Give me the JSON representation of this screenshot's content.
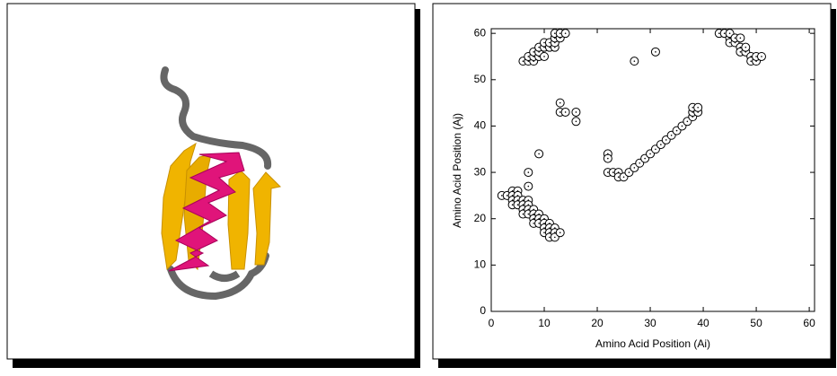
{
  "chart_data": {
    "type": "scatter",
    "xlabel": "Amino Acid Position (Ai)",
    "ylabel": "Amino Acid Position (Aj)",
    "xlim": [
      0,
      61
    ],
    "ylim": [
      0,
      61
    ],
    "xticks": [
      0,
      10,
      20,
      30,
      40,
      50,
      60
    ],
    "yticks": [
      0,
      10,
      20,
      30,
      40,
      50,
      60
    ],
    "color": "#000000",
    "x": [
      6,
      7,
      8,
      7,
      8,
      8,
      9,
      9,
      9,
      10,
      10,
      10,
      11,
      11,
      12,
      12,
      12,
      12,
      13,
      13,
      14,
      27,
      31,
      43,
      44,
      45,
      45,
      45,
      46,
      46,
      47,
      47,
      48,
      48,
      49,
      49,
      50,
      50,
      51,
      47,
      13,
      13,
      14,
      16,
      16,
      9,
      7,
      7,
      22,
      22,
      22,
      23,
      24,
      24,
      25,
      26,
      27,
      28,
      29,
      30,
      31,
      32,
      33,
      34,
      35,
      36,
      37,
      38,
      38,
      38,
      39,
      39,
      2,
      3,
      4,
      4,
      4,
      4,
      5,
      5,
      5,
      5,
      6,
      6,
      6,
      6,
      7,
      7,
      7,
      7,
      8,
      8,
      8,
      8,
      9,
      9,
      9,
      10,
      10,
      10,
      10,
      11,
      11,
      11,
      11,
      12,
      12,
      12,
      13
    ],
    "values": [
      54,
      54,
      54,
      55,
      55,
      56,
      55,
      56,
      57,
      55,
      57,
      58,
      57,
      58,
      57,
      58,
      59,
      60,
      59,
      60,
      60,
      54,
      56,
      60,
      60,
      59,
      60,
      58,
      58,
      59,
      57,
      56,
      56,
      57,
      55,
      54,
      54,
      55,
      55,
      59,
      45,
      43,
      43,
      43,
      41,
      34,
      30,
      27,
      34,
      33,
      30,
      30,
      30,
      29,
      29,
      30,
      31,
      32,
      33,
      34,
      35,
      36,
      37,
      38,
      39,
      40,
      41,
      42,
      43,
      44,
      43,
      44,
      25,
      25,
      26,
      25,
      24,
      23,
      26,
      25,
      24,
      23,
      24,
      23,
      22,
      21,
      24,
      23,
      22,
      21,
      22,
      21,
      20,
      19,
      21,
      20,
      19,
      20,
      19,
      18,
      17,
      19,
      18,
      17,
      16,
      18,
      17,
      16,
      17
    ]
  }
}
